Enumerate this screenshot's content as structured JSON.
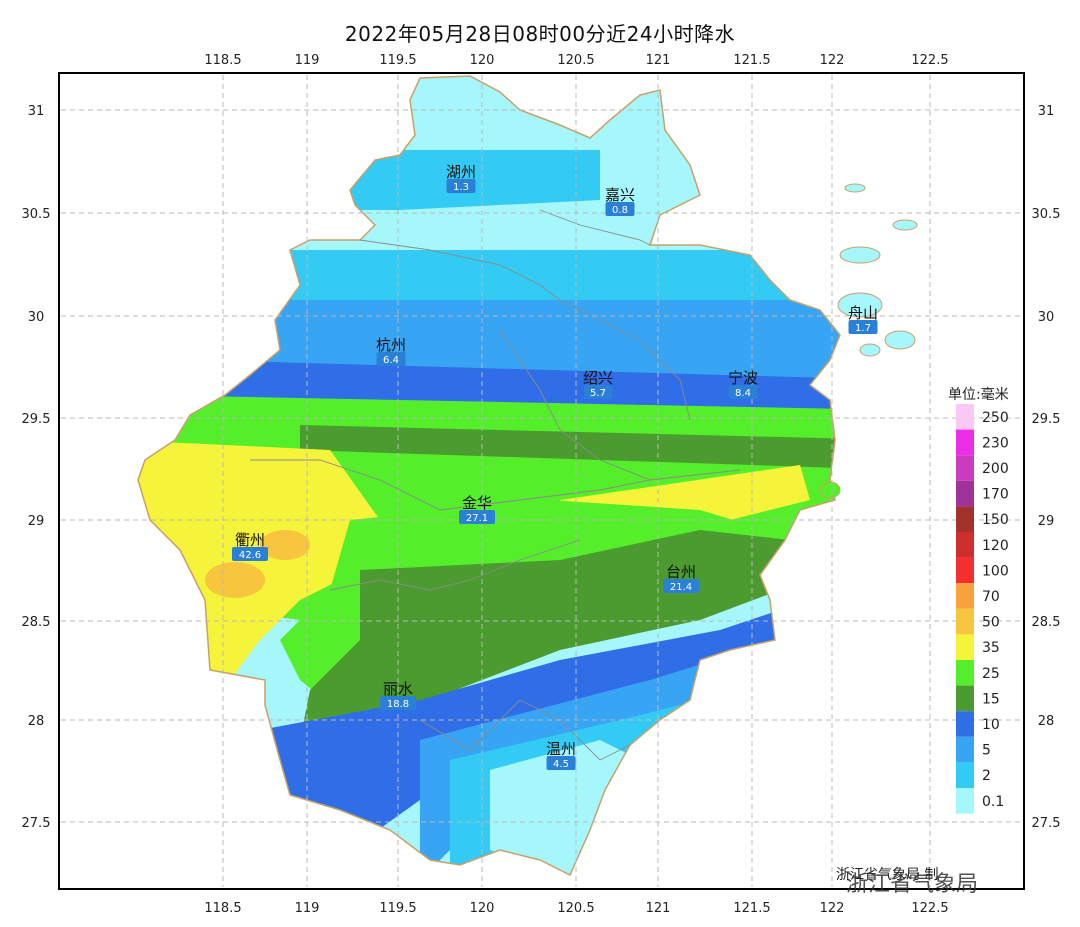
{
  "title": "2022年05月28日08时00分近24小时降水",
  "axes": {
    "lon_ticks": [
      "118.5",
      "119",
      "119.5",
      "120",
      "120.5",
      "121",
      "121.5",
      "122",
      "122.5"
    ],
    "lat_ticks": [
      "31",
      "30.5",
      "30",
      "29.5",
      "29",
      "28.5",
      "28",
      "27.5"
    ]
  },
  "cities": [
    {
      "name": "湖州",
      "value": "1.3"
    },
    {
      "name": "嘉兴",
      "value": "0.8"
    },
    {
      "name": "舟山",
      "value": "1.7"
    },
    {
      "name": "杭州",
      "value": "6.4"
    },
    {
      "name": "绍兴",
      "value": "5.7"
    },
    {
      "name": "宁波",
      "value": "8.4"
    },
    {
      "name": "金华",
      "value": "27.1"
    },
    {
      "name": "衢州",
      "value": "42.6"
    },
    {
      "name": "台州",
      "value": "21.4"
    },
    {
      "name": "丽水",
      "value": "18.8"
    },
    {
      "name": "温州",
      "value": "4.5"
    }
  ],
  "legend": {
    "unit": "单位:毫米",
    "levels": [
      {
        "label": "250",
        "color": "#f9c8f4"
      },
      {
        "label": "230",
        "color": "#ee2ee6"
      },
      {
        "label": "200",
        "color": "#cc3bbf"
      },
      {
        "label": "170",
        "color": "#a0329a"
      },
      {
        "label": "150",
        "color": "#a3322d"
      },
      {
        "label": "120",
        "color": "#d02d2d"
      },
      {
        "label": "100",
        "color": "#f52f2f"
      },
      {
        "label": "70",
        "color": "#f7a23b"
      },
      {
        "label": "50",
        "color": "#f7c53e"
      },
      {
        "label": "35",
        "color": "#f6f43a"
      },
      {
        "label": "25",
        "color": "#55ee2a"
      },
      {
        "label": "15",
        "color": "#4b9b30"
      },
      {
        "label": "10",
        "color": "#2f6ee6"
      },
      {
        "label": "5",
        "color": "#37a4f4"
      },
      {
        "label": "2",
        "color": "#33cbf4"
      },
      {
        "label": "0.1",
        "color": "#a6f7fb"
      }
    ]
  },
  "credit": "浙江省气象局 制",
  "watermark": "浙江省气象局",
  "colors": {
    "label_box": "#2a7fd6",
    "boundary": "#c8a06a",
    "grid": "#b8b8b8"
  }
}
